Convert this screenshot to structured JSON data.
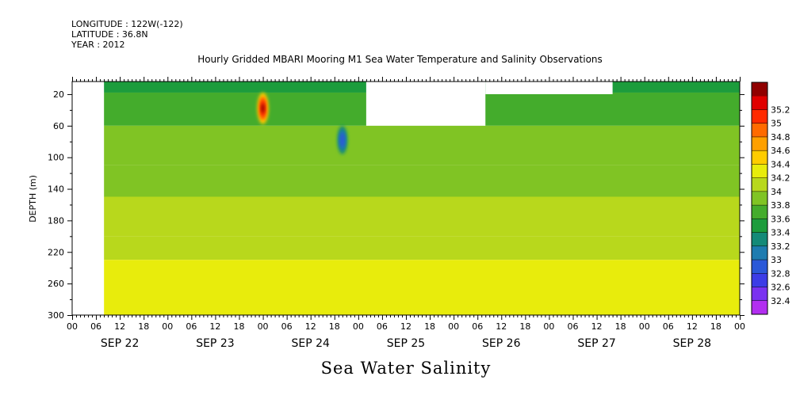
{
  "header": {
    "longitude": "LONGITUDE : 122W(-122)",
    "latitude": "LATITUDE : 36.8N",
    "year": "YEAR : 2012"
  },
  "chart_data": {
    "type": "heatmap",
    "title": "Hourly Gridded MBARI Mooring M1 Sea Water Temperature and Salinity Observations",
    "xlabel": "Sea Water Salinity",
    "ylabel": "DEPTH (m)",
    "x_day_labels": [
      "SEP 22",
      "SEP 23",
      "SEP 24",
      "SEP 25",
      "SEP 26",
      "SEP 27",
      "SEP 28"
    ],
    "x_hour_labels": [
      "00",
      "06",
      "12",
      "18",
      "00",
      "06",
      "12",
      "18",
      "00",
      "06",
      "12",
      "18",
      "00",
      "06",
      "12",
      "18",
      "00",
      "06",
      "12",
      "18",
      "00",
      "06",
      "12",
      "18",
      "00",
      "06",
      "12",
      "18",
      "00"
    ],
    "x_range_hours": [
      0,
      168
    ],
    "data_start_hour": 8,
    "y_ticks": [
      20,
      60,
      100,
      140,
      180,
      220,
      260,
      300
    ],
    "y_range": [
      300,
      4
    ],
    "colorbar": {
      "levels": [
        32.4,
        32.6,
        32.8,
        33,
        33.2,
        33.4,
        33.6,
        33.8,
        34,
        34.2,
        34.4,
        34.6,
        34.8,
        35,
        35.2
      ],
      "labels": [
        "32.4",
        "32.6",
        "32.8",
        "33",
        "33.2",
        "33.4",
        "33.6",
        "33.8",
        "34",
        "34.2",
        "34.4",
        "34.6",
        "34.8",
        "35",
        "35.2"
      ],
      "colors": [
        "#b22ef0",
        "#7a32f0",
        "#3c3ce6",
        "#2a58d8",
        "#1e7cb0",
        "#148a78",
        "#1c9c3c",
        "#44ac2c",
        "#80c424",
        "#b8d81c",
        "#e8ec0c",
        "#ffcc00",
        "#ffa000",
        "#ff6a00",
        "#ff2a00",
        "#e00000",
        "#900000"
      ]
    },
    "depth_bands": [
      {
        "top": 4,
        "bottom": 18,
        "level": 33.4
      },
      {
        "top": 18,
        "bottom": 60,
        "level": 33.6
      },
      {
        "top": 60,
        "bottom": 110,
        "level": 33.8
      },
      {
        "top": 110,
        "bottom": 150,
        "level": 33.9
      },
      {
        "top": 150,
        "bottom": 200,
        "level": 34.0
      },
      {
        "top": 200,
        "bottom": 230,
        "level": 34.1
      },
      {
        "top": 230,
        "bottom": 300,
        "level": 34.2
      }
    ],
    "missing_regions": [
      {
        "x0": 0,
        "x1": 8,
        "top": 4,
        "bottom": 300
      },
      {
        "x0": 74,
        "x1": 104,
        "top": 4,
        "bottom": 60
      },
      {
        "x0": 104,
        "x1": 136,
        "top": 4,
        "bottom": 20
      }
    ],
    "anomalies": [
      {
        "name": "high-salinity",
        "x": 48,
        "depth": 38,
        "level": 35.2
      },
      {
        "name": "low-salinity",
        "x": 68,
        "depth": 78,
        "level": 32.8
      }
    ]
  }
}
